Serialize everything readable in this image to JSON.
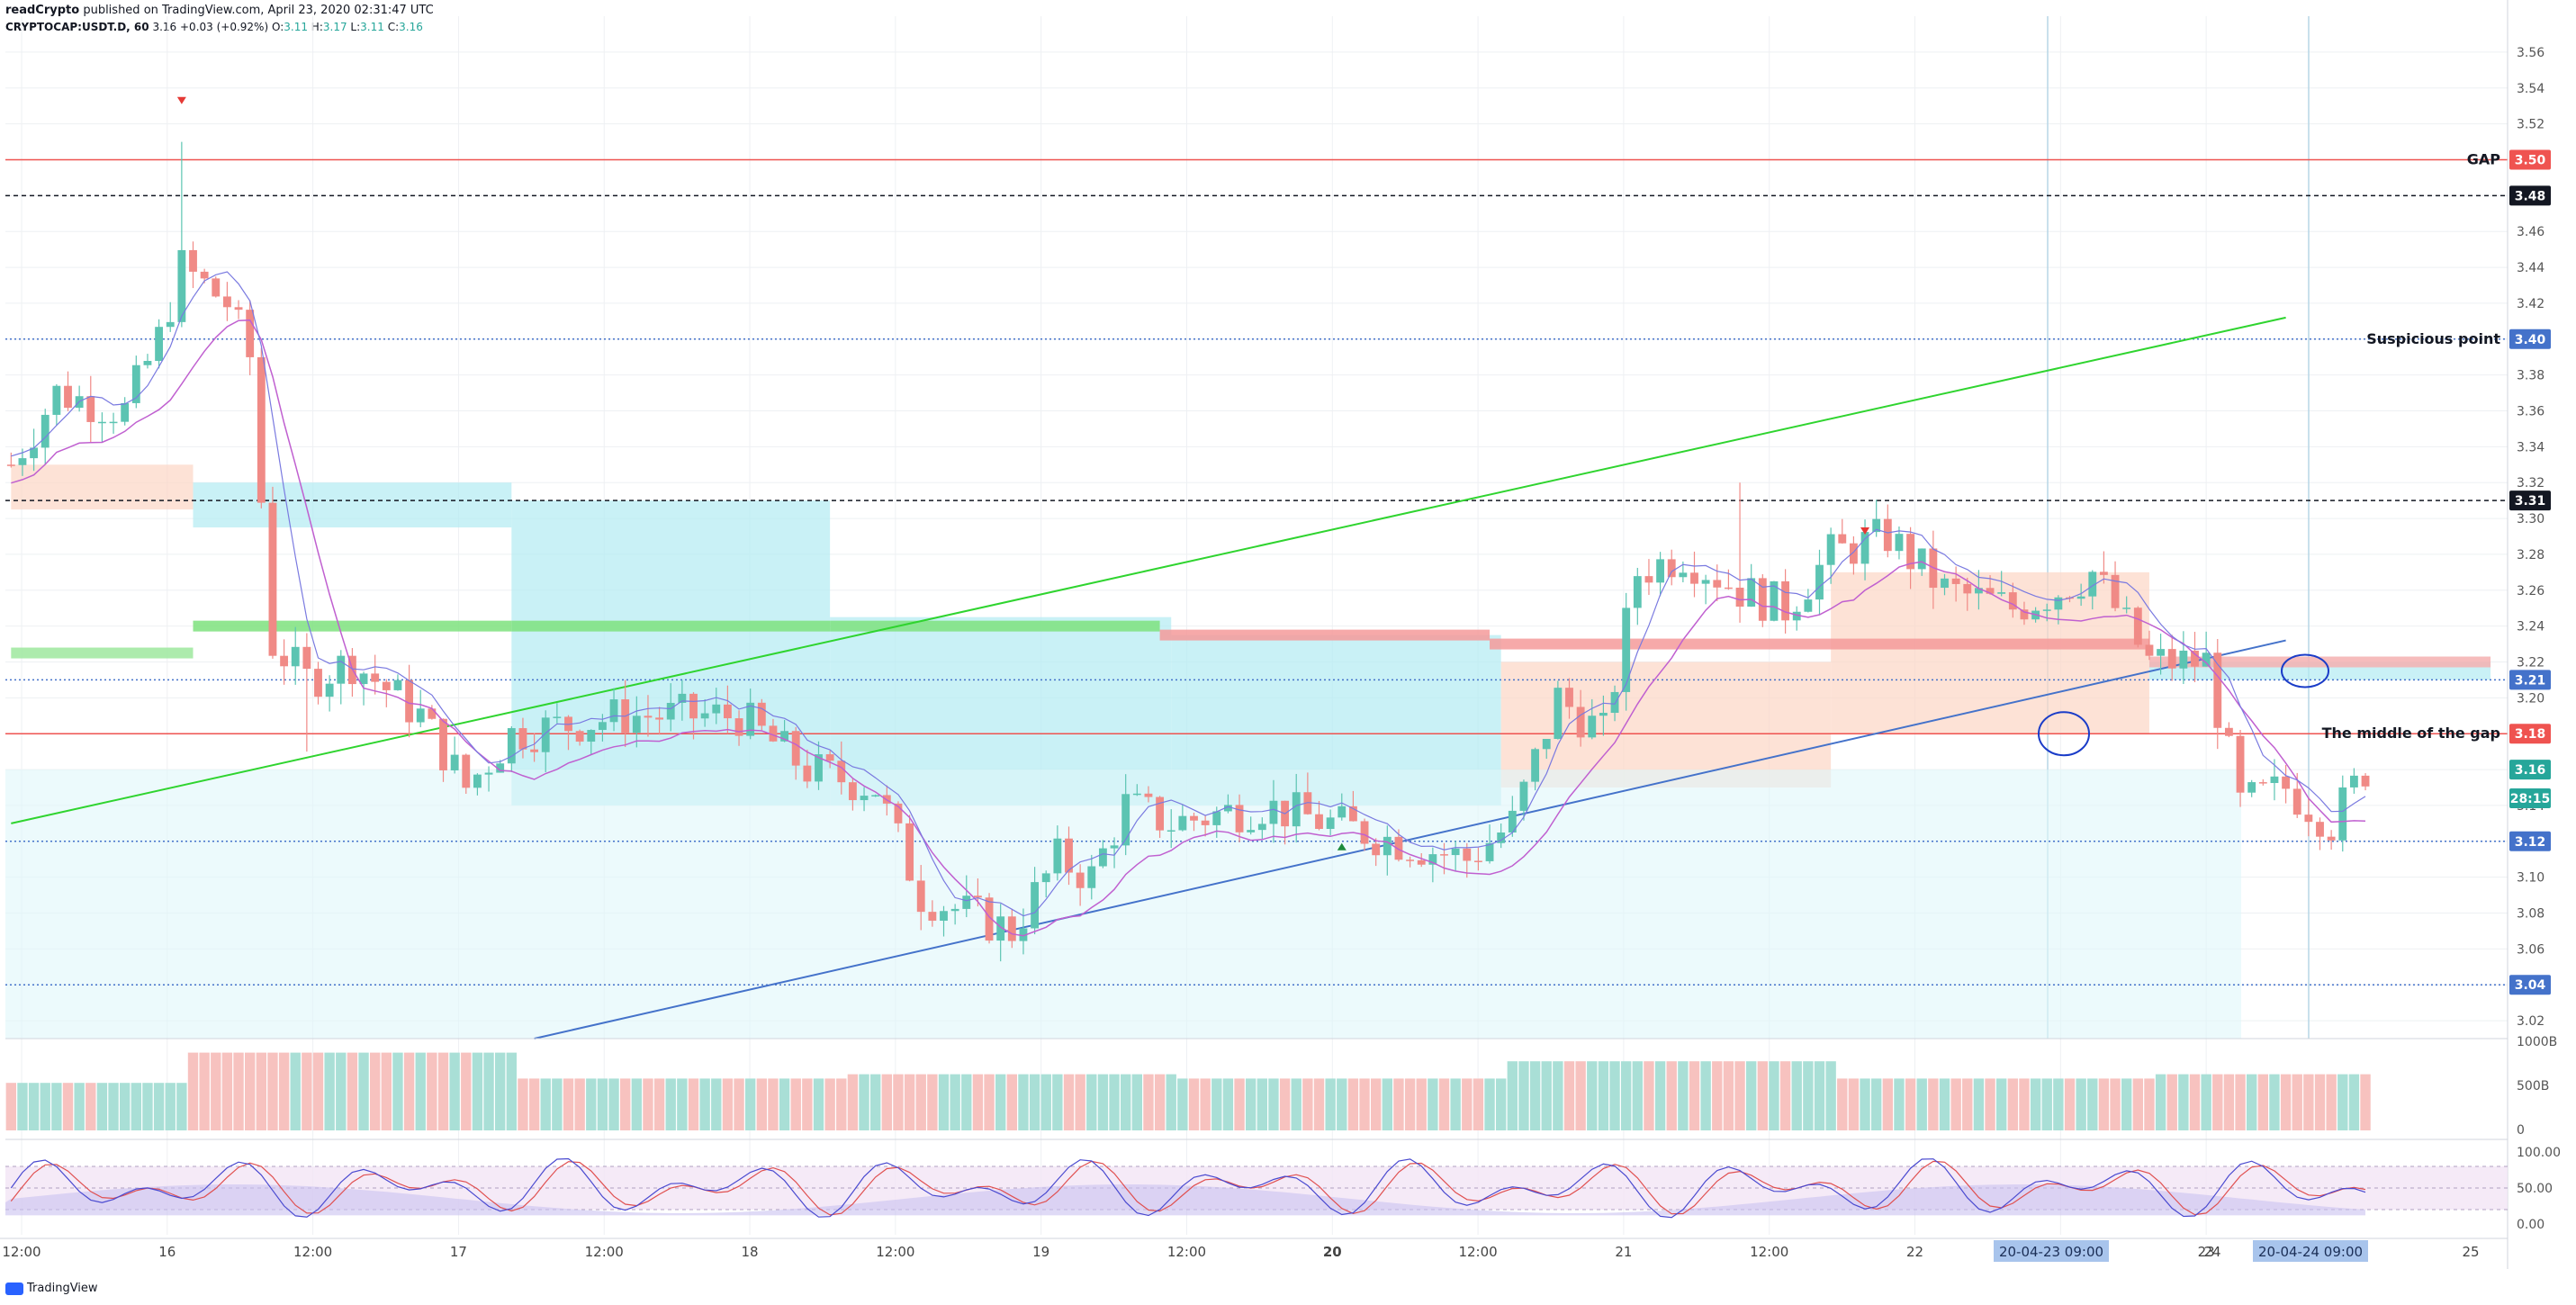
{
  "header": {
    "publisher": "readCrypto",
    "published_text": "published on TradingView.com, April 23, 2020 02:31:47 UTC",
    "symbol": "CRYPTOCAP:USDT.D, 60",
    "last": "3.16",
    "change": "+0.03 (+0.92%)",
    "o_label": "O:",
    "o": "3.11",
    "h_label": "H:",
    "h": "3.17",
    "l_label": "L:",
    "l": "3.11",
    "c_label": "C:",
    "c": "3.16"
  },
  "footer": {
    "brand": "TradingView",
    "logo_icon": "tradingview-logo-icon"
  },
  "colors": {
    "up": "#26a69a",
    "down": "#ef5350",
    "green_line": "#2fd42f",
    "blue_line": "#4472ca",
    "red_level": "#ef5350",
    "grid": "#eef0f3"
  },
  "chart_data": {
    "type": "candlestick",
    "symbol": "CRYPTOCAP:USDT.D",
    "interval": "60",
    "price_axis": {
      "range": [
        3.01,
        3.57
      ],
      "ticks": [
        "3.02",
        "3.04",
        "3.06",
        "3.08",
        "3.10",
        "3.12",
        "3.14",
        "3.16",
        "3.18",
        "3.20",
        "3.22",
        "3.24",
        "3.26",
        "3.28",
        "3.30",
        "3.32",
        "3.34",
        "3.36",
        "3.38",
        "3.40",
        "3.42",
        "3.44",
        "3.46",
        "3.48",
        "3.50",
        "3.52",
        "3.54",
        "3.56"
      ]
    },
    "time_axis": {
      "ticks": [
        "12:00",
        "16",
        "12:00",
        "17",
        "12:00",
        "18",
        "12:00",
        "19",
        "12:00",
        "20",
        "12:00",
        "21",
        "12:00",
        "22",
        "12:00",
        "23",
        "24",
        "25"
      ],
      "bold_ticks": [
        "20"
      ],
      "highlight_labels": [
        "20-04-23   09:00",
        "20-04-24   09:00"
      ]
    },
    "price_labels": [
      {
        "text": "3.50",
        "price": 3.5,
        "color": "#ef5350"
      },
      {
        "text": "3.48",
        "price": 3.48,
        "color": "#131722"
      },
      {
        "text": "3.40",
        "price": 3.4,
        "color": "#4472ca"
      },
      {
        "text": "3.31",
        "price": 3.31,
        "color": "#131722"
      },
      {
        "text": "3.21",
        "price": 3.21,
        "color": "#4472ca"
      },
      {
        "text": "3.18",
        "price": 3.18,
        "color": "#ef5350"
      },
      {
        "text": "3.16",
        "price": 3.16,
        "color": "#26a69a"
      },
      {
        "text": "28:15",
        "price": 3.144,
        "color": "#26a69a"
      },
      {
        "text": "3.12",
        "price": 3.12,
        "color": "#4472ca"
      },
      {
        "text": "3.04",
        "price": 3.04,
        "color": "#4472ca"
      }
    ],
    "horizontal_levels": [
      {
        "price": 3.5,
        "style": "solid",
        "color": "#ef5350"
      },
      {
        "price": 3.48,
        "style": "dashed",
        "color": "#131722"
      },
      {
        "price": 3.4,
        "style": "dotted",
        "color": "#4472ca"
      },
      {
        "price": 3.31,
        "style": "dashed",
        "color": "#131722"
      },
      {
        "price": 3.21,
        "style": "dotted",
        "color": "#4472ca"
      },
      {
        "price": 3.18,
        "style": "solid",
        "color": "#ef5350"
      },
      {
        "price": 3.12,
        "style": "dotted",
        "color": "#4472ca"
      },
      {
        "price": 3.04,
        "style": "dotted",
        "color": "#4472ca"
      }
    ],
    "annotations": [
      {
        "text": "GAP",
        "price": 3.5
      },
      {
        "text": "Suspicious point",
        "price": 3.4
      },
      {
        "text": "The middle of the gap",
        "price": 3.18
      }
    ],
    "trendlines": [
      {
        "name": "",
        "color": "#2fd42f",
        "from": [
          0,
          3.13
        ],
        "to": [
          200,
          3.412
        ]
      },
      {
        "name": "",
        "color": "#4472ca",
        "from": [
          46,
          3.01
        ],
        "to": [
          200,
          3.232
        ]
      }
    ],
    "candles_summary": {
      "first_open": 3.33,
      "high": 3.51,
      "low": 3.06,
      "last_close": 3.16
    },
    "volume_axis": {
      "ticks": [
        "1000B",
        "500B",
        "0"
      ]
    },
    "oscillator_axis": {
      "ticks": [
        "100.00",
        "50.00",
        "0.00"
      ]
    }
  }
}
